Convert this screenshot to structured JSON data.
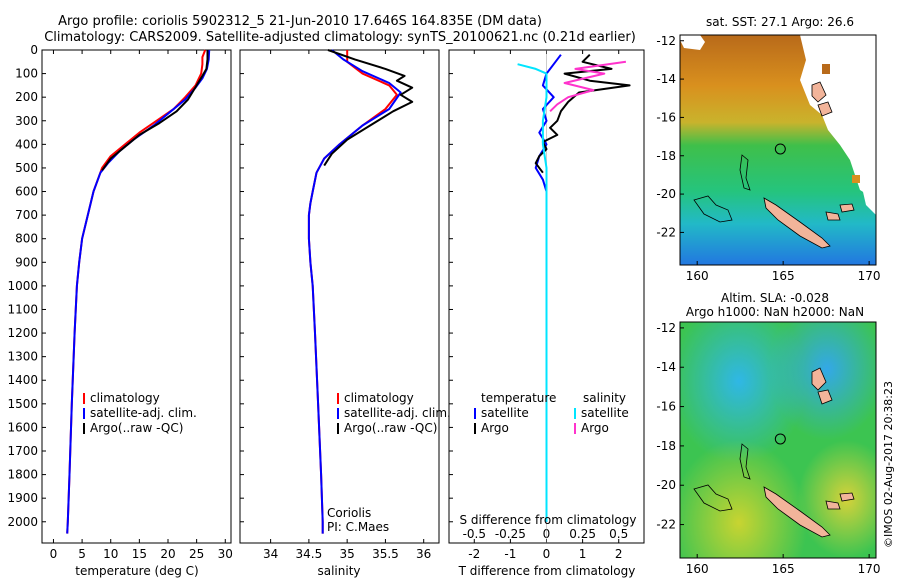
{
  "title_line1": "Argo profile: coriolis 5902312_5 21-Jun-2010 17.646S 164.835E (DM data)",
  "title_line2": "Climatology: CARS2009. Satellite-adjusted climatology: synTS_20100621.nc (0.21d earlier)",
  "watermark": "©IMOS 02-Aug-2017 20:38:23",
  "colors": {
    "climatology": "#ff0000",
    "satellite": "#0000ff",
    "argo": "#000000",
    "salinity_satellite": "#00e5ff",
    "salinity_argo": "#ff33cc"
  },
  "chart_data": [
    {
      "type": "line",
      "name": "temperature",
      "xlabel": "temperature (deg C)",
      "ylabel": "",
      "xlim": [
        -2,
        31
      ],
      "ylim": [
        2090,
        0
      ],
      "xticks": [
        0,
        5,
        10,
        15,
        20,
        25,
        30
      ],
      "yticks": [
        0,
        100,
        200,
        300,
        400,
        500,
        600,
        700,
        800,
        900,
        1000,
        1100,
        1200,
        1300,
        1400,
        1500,
        1600,
        1700,
        1800,
        1900,
        2000
      ],
      "legend": {
        "position": "lower-left",
        "entries": [
          "climatology",
          "satellite-adj. clim.",
          "Argo(..raw -QC)"
        ]
      },
      "series": [
        {
          "name": "climatology",
          "color": "#ff0000",
          "points": [
            [
              26.5,
              0
            ],
            [
              26,
              30
            ],
            [
              26,
              60
            ],
            [
              25.8,
              100
            ],
            [
              24.8,
              150
            ],
            [
              23,
              200
            ],
            [
              21,
              250
            ],
            [
              18,
              300
            ],
            [
              15,
              350
            ],
            [
              12.5,
              400
            ],
            [
              10,
              450
            ],
            [
              8.5,
              500
            ],
            [
              7,
              600
            ],
            [
              6,
              700
            ],
            [
              5,
              800
            ],
            [
              4.5,
              900
            ],
            [
              4.1,
              1000
            ],
            [
              3.7,
              1200
            ],
            [
              3.2,
              1500
            ],
            [
              2.8,
              1800
            ],
            [
              2.5,
              2000
            ],
            [
              2.4,
              2050
            ]
          ]
        },
        {
          "name": "satellite-adj. clim.",
          "color": "#0000ff",
          "points": [
            [
              27.2,
              0
            ],
            [
              27.1,
              40
            ],
            [
              26.8,
              80
            ],
            [
              26,
              120
            ],
            [
              24.8,
              160
            ],
            [
              23,
              210
            ],
            [
              20.5,
              260
            ],
            [
              17.5,
              320
            ],
            [
              14,
              380
            ],
            [
              11.5,
              430
            ],
            [
              9.5,
              480
            ],
            [
              8.2,
              520
            ],
            [
              7,
              600
            ],
            [
              6,
              700
            ],
            [
              5,
              800
            ],
            [
              4.5,
              900
            ],
            [
              4.1,
              1000
            ],
            [
              3.7,
              1200
            ],
            [
              3.2,
              1500
            ],
            [
              2.8,
              1800
            ],
            [
              2.5,
              2000
            ],
            [
              2.4,
              2050
            ]
          ]
        },
        {
          "name": "Argo(..raw -QC)",
          "color": "#000000",
          "points": [
            [
              26.9,
              0
            ],
            [
              26.9,
              40
            ],
            [
              26.7,
              80
            ],
            [
              26,
              110
            ],
            [
              25,
              150
            ],
            [
              23.5,
              210
            ],
            [
              21.5,
              260
            ],
            [
              18.5,
              310
            ],
            [
              15,
              360
            ],
            [
              12.5,
              410
            ],
            [
              10,
              460
            ],
            [
              8.5,
              510
            ]
          ]
        }
      ]
    },
    {
      "type": "line",
      "name": "salinity",
      "xlabel": "salinity",
      "ylabel": "",
      "xlim": [
        33.6,
        36.2
      ],
      "ylim": [
        2090,
        0
      ],
      "xticks": [
        34,
        34.5,
        35,
        35.5,
        36
      ],
      "legend": {
        "position": "lower-right",
        "entries": [
          "climatology",
          "satellite-adj. clim.",
          "Argo(..raw -QC)"
        ]
      },
      "annotation": [
        "Coriolis",
        "PI: C.Maes"
      ],
      "series": [
        {
          "name": "climatology",
          "color": "#ff0000",
          "points": [
            [
              35,
              0
            ],
            [
              35,
              50
            ],
            [
              35.2,
              100
            ],
            [
              35.55,
              150
            ],
            [
              35.65,
              190
            ],
            [
              35.5,
              250
            ],
            [
              35.2,
              320
            ],
            [
              34.9,
              400
            ],
            [
              34.7,
              460
            ],
            [
              34.6,
              520
            ],
            [
              34.55,
              600
            ],
            [
              34.52,
              650
            ],
            [
              34.5,
              700
            ],
            [
              34.5,
              800
            ],
            [
              34.52,
              900
            ],
            [
              34.55,
              1000
            ],
            [
              34.58,
              1200
            ],
            [
              34.62,
              1500
            ],
            [
              34.66,
              1800
            ],
            [
              34.68,
              2000
            ],
            [
              34.68,
              2050
            ]
          ]
        },
        {
          "name": "satellite-adj. clim.",
          "color": "#0000ff",
          "points": [
            [
              34.8,
              0
            ],
            [
              34.95,
              40
            ],
            [
              35.2,
              90
            ],
            [
              35.55,
              140
            ],
            [
              35.7,
              180
            ],
            [
              35.55,
              250
            ],
            [
              35.2,
              320
            ],
            [
              34.9,
              400
            ],
            [
              34.7,
              460
            ],
            [
              34.6,
              520
            ],
            [
              34.55,
              600
            ],
            [
              34.52,
              650
            ],
            [
              34.5,
              700
            ],
            [
              34.5,
              800
            ],
            [
              34.52,
              900
            ],
            [
              34.55,
              1000
            ],
            [
              34.58,
              1200
            ],
            [
              34.62,
              1500
            ],
            [
              34.66,
              1800
            ],
            [
              34.68,
              2000
            ],
            [
              34.68,
              2050
            ]
          ]
        },
        {
          "name": "Argo(..raw -QC)",
          "color": "#000000",
          "points": [
            [
              34.75,
              0
            ],
            [
              35.1,
              40
            ],
            [
              35.5,
              80
            ],
            [
              35.75,
              110
            ],
            [
              35.65,
              130
            ],
            [
              35.85,
              160
            ],
            [
              35.7,
              190
            ],
            [
              35.85,
              220
            ],
            [
              35.6,
              260
            ],
            [
              35.3,
              320
            ],
            [
              35,
              380
            ],
            [
              34.8,
              440
            ],
            [
              34.7,
              490
            ]
          ]
        }
      ]
    },
    {
      "type": "line",
      "name": "difference",
      "xlabel": "T difference from climatology",
      "xlabel_top": "S difference from climatology",
      "xlim": [
        -2.7,
        2.7
      ],
      "ylim": [
        2090,
        0
      ],
      "xticks_T": [
        -2,
        -1,
        0,
        1,
        2
      ],
      "xticks_S": [
        "-0.5",
        "-0.25",
        "0",
        "0.25",
        "0.5"
      ],
      "legend_temperature": {
        "title": "temperature",
        "entries": [
          "satellite",
          "Argo"
        ]
      },
      "legend_salinity": {
        "title": "salinity",
        "entries": [
          "satellite",
          "Argo"
        ]
      },
      "series": [
        {
          "name": "T satellite",
          "color": "#0000ff",
          "points": [
            [
              0.4,
              20
            ],
            [
              0.2,
              60
            ],
            [
              0,
              100
            ],
            [
              -0.1,
              150
            ],
            [
              0.2,
              200
            ],
            [
              -0.1,
              250
            ],
            [
              0,
              300
            ],
            [
              -0.2,
              350
            ],
            [
              0,
              400
            ],
            [
              -0.2,
              450
            ],
            [
              -0.3,
              500
            ],
            [
              -0.1,
              550
            ],
            [
              0,
              600
            ],
            [
              0,
              700
            ],
            [
              0,
              900
            ],
            [
              0,
              1200
            ],
            [
              0,
              1500
            ],
            [
              0,
              2000
            ]
          ]
        },
        {
          "name": "T Argo",
          "color": "#000000",
          "points": [
            [
              1.2,
              20
            ],
            [
              1,
              50
            ],
            [
              1.8,
              80
            ],
            [
              0.5,
              100
            ],
            [
              1.2,
              130
            ],
            [
              2.3,
              150
            ],
            [
              0.9,
              180
            ],
            [
              0.6,
              220
            ],
            [
              0.4,
              260
            ],
            [
              0.3,
              300
            ],
            [
              0.1,
              330
            ],
            [
              0.3,
              360
            ],
            [
              -0.1,
              390
            ],
            [
              0,
              420
            ],
            [
              -0.2,
              450
            ],
            [
              -0.3,
              480
            ],
            [
              -0.1,
              520
            ]
          ]
        },
        {
          "name": "S satellite",
          "color": "#00e5ff",
          "points": [
            [
              -0.8,
              60
            ],
            [
              -0.3,
              80
            ],
            [
              0,
              100
            ],
            [
              0,
              200
            ],
            [
              -0.1,
              300
            ],
            [
              -0.1,
              400
            ],
            [
              0,
              500
            ],
            [
              0,
              600
            ],
            [
              0,
              800
            ],
            [
              0,
              1000
            ],
            [
              0,
              1500
            ],
            [
              0,
              2000
            ]
          ]
        },
        {
          "name": "S Argo",
          "color": "#ff33cc",
          "points": [
            [
              2.2,
              50
            ],
            [
              0.8,
              80
            ],
            [
              1.6,
              100
            ],
            [
              0.5,
              140
            ],
            [
              1.3,
              170
            ],
            [
              0.6,
              200
            ],
            [
              0.3,
              230
            ],
            [
              0.1,
              260
            ]
          ]
        }
      ]
    },
    {
      "type": "heatmap",
      "name": "sst-map",
      "title": "sat. SST: 27.1  Argo: 26.6",
      "xticks": [
        160,
        165,
        170
      ],
      "yticks": [
        -12,
        -14,
        -16,
        -18,
        -20,
        -22
      ],
      "xlim": [
        159,
        170.4
      ],
      "ylim": [
        -23.7,
        -11.7
      ],
      "argo_position": [
        164.835,
        -17.646
      ]
    },
    {
      "type": "heatmap",
      "name": "sla-map",
      "title_line1": "Altim. SLA: -0.028",
      "title_line2": "Argo h1000: NaN h2000: NaN",
      "xticks": [
        160,
        165,
        170
      ],
      "yticks": [
        -12,
        -14,
        -16,
        -18,
        -20,
        -22
      ],
      "xlim": [
        159,
        170.4
      ],
      "ylim": [
        -23.7,
        -11.7
      ],
      "argo_position": [
        164.835,
        -17.646
      ]
    }
  ]
}
